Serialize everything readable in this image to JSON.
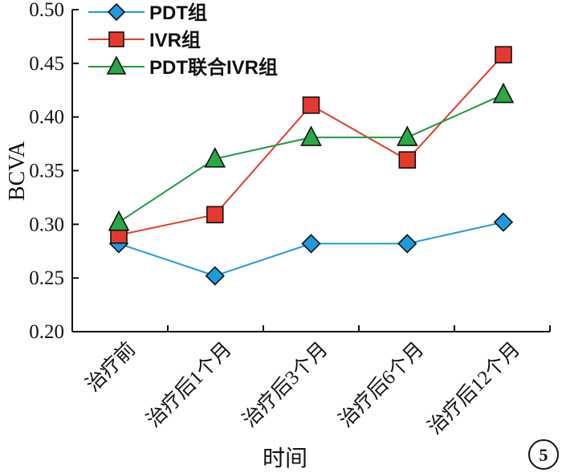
{
  "chart_data": {
    "type": "line",
    "categories": [
      "治疗前",
      "治疗后1个月",
      "治疗后3个月",
      "治疗后6个月",
      "治疗后12个月"
    ],
    "series": [
      {
        "name": "PDT组",
        "values": [
          0.282,
          0.252,
          0.282,
          0.282,
          0.302
        ],
        "color": "#1e9bdc",
        "marker": "diamond",
        "marker_fill": "#1e9bdc"
      },
      {
        "name": "IVR组",
        "values": [
          0.29,
          0.309,
          0.411,
          0.36,
          0.458
        ],
        "color": "#e23b2c",
        "marker": "square",
        "marker_fill": "#e43a2d"
      },
      {
        "name": "PDT联合IVR组",
        "values": [
          0.302,
          0.361,
          0.381,
          0.381,
          0.421
        ],
        "color": "#1f9a3c",
        "marker": "triangle",
        "marker_fill": "#29a844"
      }
    ],
    "xlabel": "时间",
    "ylabel": "BCVA",
    "ylim": [
      0.2,
      0.5
    ],
    "yticks": [
      "0.20",
      "0.25",
      "0.30",
      "0.35",
      "0.40",
      "0.45",
      "0.50"
    ],
    "legend_position": "top-left",
    "grid": false
  },
  "badge": "5"
}
